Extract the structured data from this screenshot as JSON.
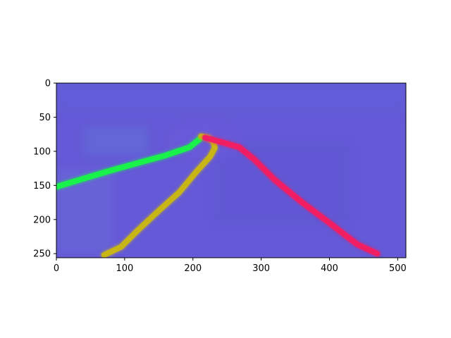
{
  "image": {
    "description_colors": {
      "background": "#6459d6",
      "green_line": "#19f24a",
      "yellow_line": "#c7b616",
      "red_line": "#f21e63"
    }
  },
  "axes": {
    "xlim": [
      0,
      512
    ],
    "ylim": [
      256,
      0
    ],
    "xticks": [
      "0",
      "100",
      "200",
      "300",
      "400",
      "500"
    ],
    "yticks": [
      "0",
      "50",
      "100",
      "150",
      "200",
      "250"
    ]
  },
  "lines": [
    {
      "name": "green",
      "color": "#19f24a",
      "points": [
        [
          0,
          152
        ],
        [
          40,
          140
        ],
        [
          80,
          128
        ],
        [
          120,
          117
        ],
        [
          160,
          106
        ],
        [
          195,
          94
        ],
        [
          205,
          86
        ],
        [
          210,
          82
        ]
      ]
    },
    {
      "name": "yellow",
      "color": "#c7b616",
      "points": [
        [
          70,
          252
        ],
        [
          95,
          240
        ],
        [
          120,
          215
        ],
        [
          150,
          187
        ],
        [
          180,
          160
        ],
        [
          205,
          130
        ],
        [
          225,
          108
        ],
        [
          232,
          95
        ],
        [
          230,
          86
        ],
        [
          222,
          80
        ],
        [
          212,
          78
        ]
      ]
    },
    {
      "name": "red",
      "color": "#f21e63",
      "points": [
        [
          218,
          80
        ],
        [
          240,
          86
        ],
        [
          268,
          94
        ],
        [
          290,
          112
        ],
        [
          320,
          142
        ],
        [
          360,
          175
        ],
        [
          400,
          205
        ],
        [
          440,
          236
        ],
        [
          470,
          250
        ]
      ]
    }
  ]
}
